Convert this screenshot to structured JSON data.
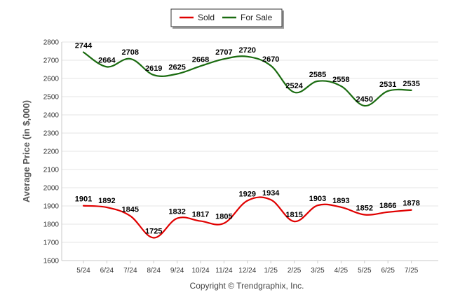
{
  "chart_data": {
    "type": "line",
    "ylabel": "Average Price (in $,000)",
    "ylim": [
      1600,
      2800
    ],
    "yticks": [
      1600,
      1700,
      1800,
      1900,
      2000,
      2100,
      2200,
      2300,
      2400,
      2500,
      2600,
      2700,
      2800
    ],
    "categories": [
      "5/24",
      "6/24",
      "7/24",
      "8/24",
      "9/24",
      "10/24",
      "11/24",
      "12/24",
      "1/25",
      "2/25",
      "3/25",
      "4/25",
      "5/25",
      "6/25",
      "7/25"
    ],
    "grid": true,
    "legend_position": "top-center",
    "series": [
      {
        "name": "Sold",
        "color": "#e00000",
        "values": [
          1901,
          1892,
          1845,
          1725,
          1832,
          1817,
          1805,
          1929,
          1934,
          1815,
          1903,
          1893,
          1852,
          1866,
          1878
        ]
      },
      {
        "name": "For Sale",
        "color": "#1a6b10",
        "values": [
          2744,
          2664,
          2708,
          2619,
          2625,
          2668,
          2707,
          2720,
          2670,
          2524,
          2585,
          2558,
          2450,
          2531,
          2535
        ]
      }
    ]
  },
  "footer": {
    "credit": "Copyright © Trendgraphix, Inc."
  }
}
